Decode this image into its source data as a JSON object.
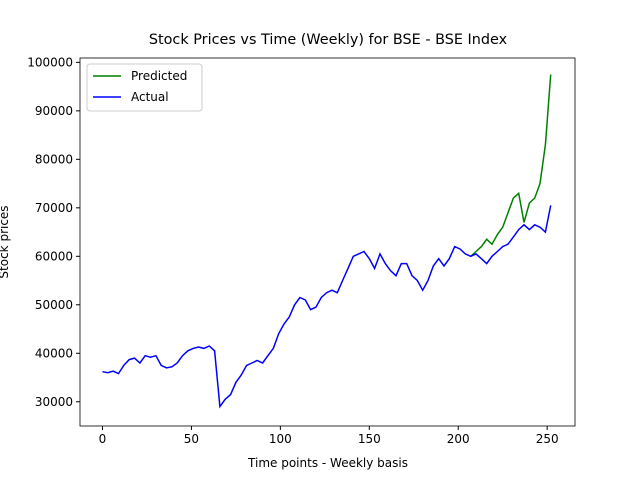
{
  "chart_data": {
    "type": "line",
    "title": "Stock Prices vs Time (Weekly) for BSE - BSE Index",
    "x_label": "Time points - Weekly basis",
    "y_label": "Stock prices",
    "x": [
      0,
      3,
      6,
      9,
      12,
      15,
      18,
      21,
      24,
      27,
      30,
      33,
      36,
      39,
      42,
      45,
      48,
      51,
      54,
      57,
      60,
      63,
      66,
      69,
      72,
      75,
      78,
      81,
      84,
      87,
      90,
      93,
      96,
      99,
      102,
      105,
      108,
      111,
      114,
      117,
      120,
      123,
      126,
      129,
      132,
      135,
      138,
      141,
      144,
      147,
      150,
      153,
      156,
      159,
      162,
      165,
      168,
      171,
      174,
      177,
      180,
      183,
      186,
      189,
      192,
      195,
      198,
      201,
      204,
      207,
      210,
      213,
      216,
      219,
      222,
      225,
      228,
      231,
      234,
      237,
      240,
      243,
      246,
      249,
      252
    ],
    "series": [
      {
        "name": "Predicted",
        "color": "#008000",
        "values": [
          null,
          null,
          null,
          null,
          null,
          null,
          null,
          null,
          null,
          null,
          null,
          null,
          null,
          null,
          null,
          null,
          null,
          null,
          null,
          null,
          null,
          null,
          null,
          null,
          null,
          null,
          null,
          null,
          null,
          null,
          null,
          null,
          null,
          null,
          null,
          null,
          null,
          null,
          null,
          null,
          null,
          null,
          null,
          null,
          null,
          null,
          null,
          null,
          null,
          null,
          null,
          null,
          null,
          null,
          null,
          null,
          null,
          null,
          null,
          null,
          null,
          null,
          null,
          null,
          null,
          null,
          null,
          null,
          null,
          60000,
          61000,
          62000,
          63500,
          62500,
          64500,
          66000,
          69000,
          72000,
          73000,
          67000,
          71000,
          72000,
          75000,
          83000,
          97500
        ]
      },
      {
        "name": "Actual",
        "color": "#0000ff",
        "values": [
          36200,
          36000,
          36300,
          35800,
          37500,
          38700,
          39000,
          38000,
          39500,
          39200,
          39500,
          37500,
          37000,
          37200,
          38000,
          39500,
          40500,
          41000,
          41300,
          41000,
          41500,
          40500,
          29000,
          30500,
          31500,
          34000,
          35500,
          37500,
          38000,
          38500,
          38000,
          39500,
          41000,
          44000,
          46000,
          47500,
          50000,
          51500,
          51000,
          49000,
          49500,
          51500,
          52500,
          53000,
          52500,
          55000,
          57500,
          60000,
          60500,
          61000,
          59500,
          57500,
          60500,
          58500,
          57000,
          56000,
          58500,
          58500,
          56000,
          55000,
          53000,
          55000,
          58000,
          59500,
          58000,
          59500,
          62000,
          61500,
          60500,
          60000,
          60500,
          59500,
          58500,
          60000,
          61000,
          62000,
          62500,
          64000,
          65500,
          66500,
          65500,
          66500,
          66000,
          65000,
          70500
        ]
      }
    ],
    "xlim": [
      -12.65,
      265.65
    ],
    "ylim": [
      25000,
      100900
    ],
    "xticks": [
      0,
      50,
      100,
      150,
      200,
      250
    ],
    "yticks": [
      30000,
      40000,
      50000,
      60000,
      70000,
      80000,
      90000,
      100000
    ],
    "legend": "upper left"
  }
}
